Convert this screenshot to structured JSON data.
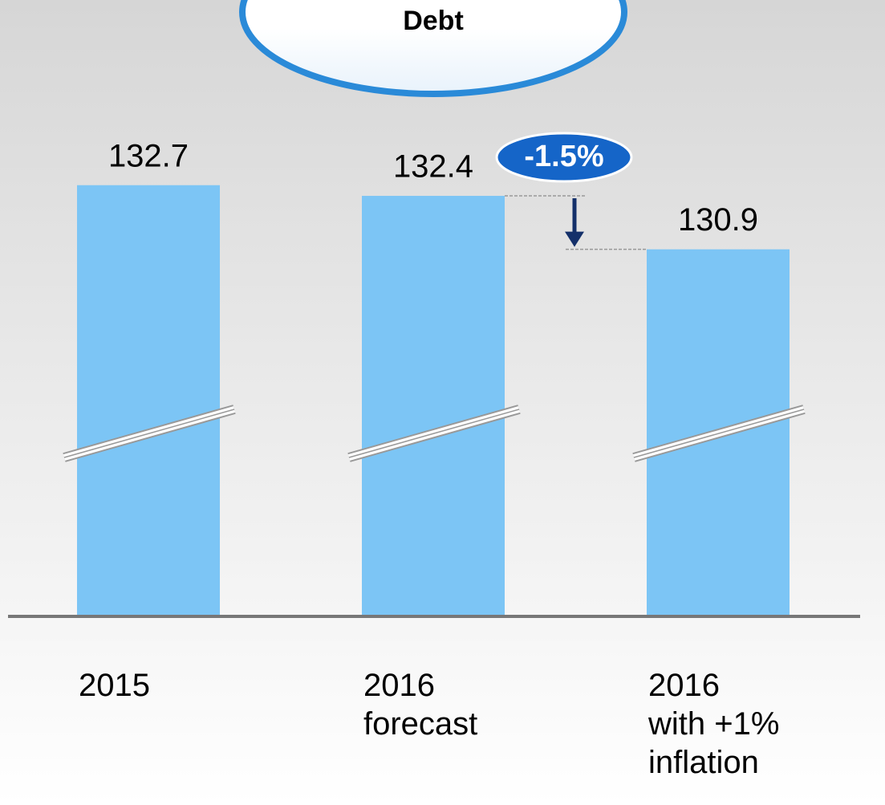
{
  "chart_data": {
    "type": "bar",
    "title": "Debt",
    "categories": [
      "2015",
      "2016\nforecast",
      "2016\nwith +1%\ninflation"
    ],
    "values": [
      132.7,
      132.4,
      130.9
    ],
    "color": "#7cc5f5",
    "ylim": [
      120.6,
      134
    ],
    "annotation": "-1.5%"
  }
}
